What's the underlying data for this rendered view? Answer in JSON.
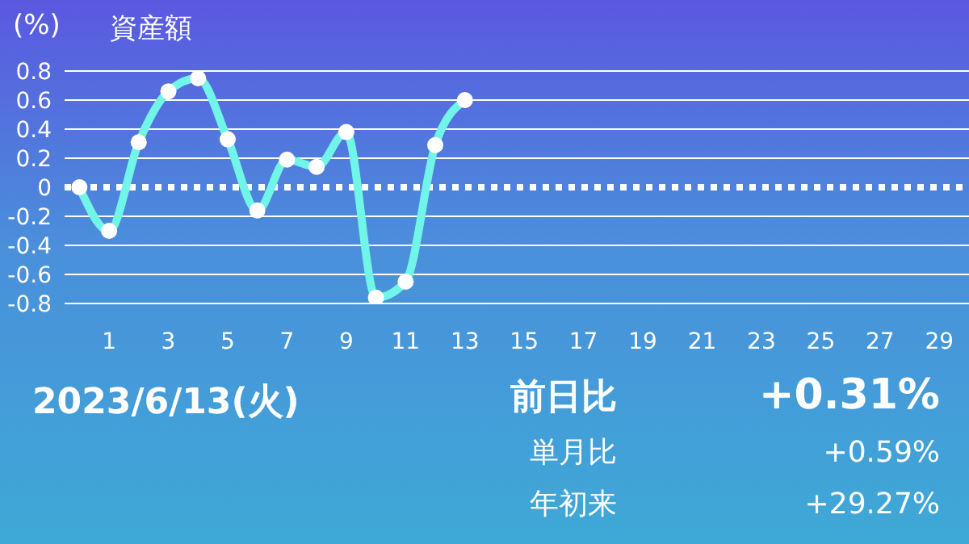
{
  "chart_data": {
    "type": "line",
    "title": "資産額",
    "ylabel": "(%)",
    "x": [
      0,
      1,
      2,
      3,
      4,
      5,
      6,
      7,
      8,
      9,
      10,
      11,
      12,
      13
    ],
    "series": [
      {
        "color": "#70f5e8",
        "values": [
          0,
          -0.3,
          0.31,
          0.66,
          0.75,
          0.33,
          -0.16,
          0.19,
          0.14,
          0.38,
          -0.76,
          -0.65,
          0.29,
          0.6
        ]
      }
    ],
    "xlim": [
      -0.5,
      30
    ],
    "xticks": [
      1,
      3,
      5,
      7,
      9,
      11,
      13,
      15,
      17,
      19,
      21,
      23,
      25,
      27,
      29
    ],
    "ylim": [
      -0.8,
      0.8
    ],
    "yticks": [
      -0.8,
      -0.6,
      -0.4,
      -0.2,
      0,
      0.2,
      0.4,
      0.6,
      0.8
    ],
    "ref_lines": [
      {
        "axis": "y",
        "value": 0,
        "line_style": "dotted",
        "color": "#ffffff"
      }
    ],
    "grid": "y",
    "marker": "circle",
    "line_style": "solid",
    "annotations": [
      "2023/6/13(火)",
      "前日比",
      "+0.31%",
      "単月比",
      "+0.59%",
      "年初来",
      "+29.27%"
    ]
  }
}
